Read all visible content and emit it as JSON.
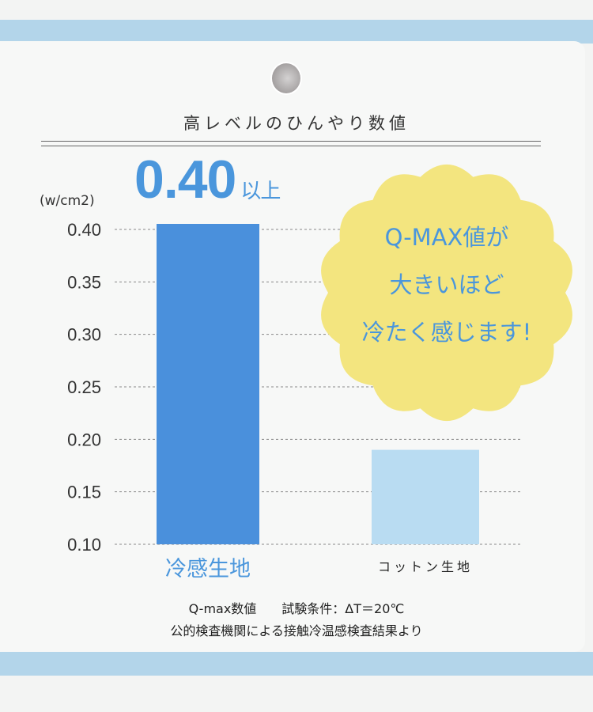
{
  "title": "高レベルのひんやり数値",
  "highlight": {
    "value": "0.40",
    "suffix": "以上"
  },
  "bubble": {
    "lines": [
      "Q-MAX値が",
      "大きいほど",
      "冷たく感じます!"
    ]
  },
  "colors": {
    "bar_primary": "#4a90dc",
    "bar_secondary": "#b9dcf2",
    "bubble": "#f3e57f",
    "band": "#b3d5ea",
    "accent_text": "#4a96dc"
  },
  "footer": {
    "line1": "Q-max数値　　試験条件：ΔT＝20℃",
    "line2": "公的検査機関による接触冷温感検査結果より"
  },
  "chart_data": {
    "type": "bar",
    "categories": [
      "冷感生地",
      "コットン生地"
    ],
    "values": [
      0.4,
      0.19
    ],
    "ylabel": "(w/cm2)",
    "ylim": [
      0.1,
      0.4
    ],
    "yticks": [
      "0.40",
      "0.35",
      "0.30",
      "0.25",
      "0.20",
      "0.15",
      "0.10"
    ],
    "grid": true
  }
}
